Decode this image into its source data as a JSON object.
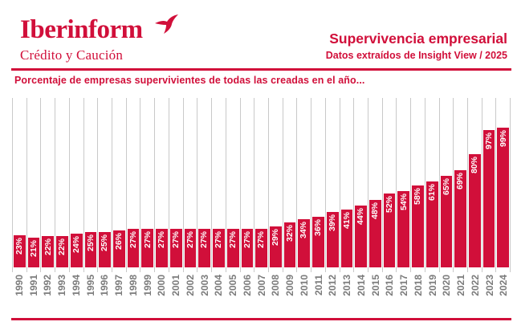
{
  "brand": {
    "name": "Iberinform",
    "subbrand": "Crédito y Caución",
    "mark": "swallow-icon"
  },
  "header": {
    "title": "Supervivencia empresarial",
    "datasource": "Datos extraídos de Insight View / 2025"
  },
  "colors": {
    "accent": "#d10f3a",
    "bar": "#d10f3a",
    "bar_label": "#ffffff",
    "year_label": "#7c7c7c",
    "grid_line": "#c9c9c9"
  },
  "chart_data": {
    "type": "bar",
    "title": "Porcentaje de empresas supervivientes de todas las creadas en el año...",
    "xlabel": "",
    "ylabel": "",
    "unit": "%",
    "ylim": [
      0,
      120
    ],
    "grid": "vertical-column-separators",
    "legend": "none",
    "bar_label_position": "inside-top-rotated-90",
    "categories": [
      1990,
      1991,
      1992,
      1993,
      1994,
      1995,
      1996,
      1997,
      1998,
      1999,
      2000,
      2001,
      2002,
      2003,
      2004,
      2005,
      2006,
      2007,
      2008,
      2009,
      2010,
      2011,
      2012,
      2013,
      2014,
      2015,
      2016,
      2017,
      2018,
      2019,
      2020,
      2021,
      2022,
      2023,
      2024
    ],
    "values": [
      23,
      21,
      22,
      22,
      24,
      25,
      25,
      26,
      27,
      27,
      27,
      27,
      27,
      27,
      27,
      27,
      27,
      27,
      29,
      32,
      34,
      36,
      39,
      41,
      44,
      48,
      52,
      54,
      58,
      61,
      65,
      69,
      80,
      97,
      99
    ]
  }
}
